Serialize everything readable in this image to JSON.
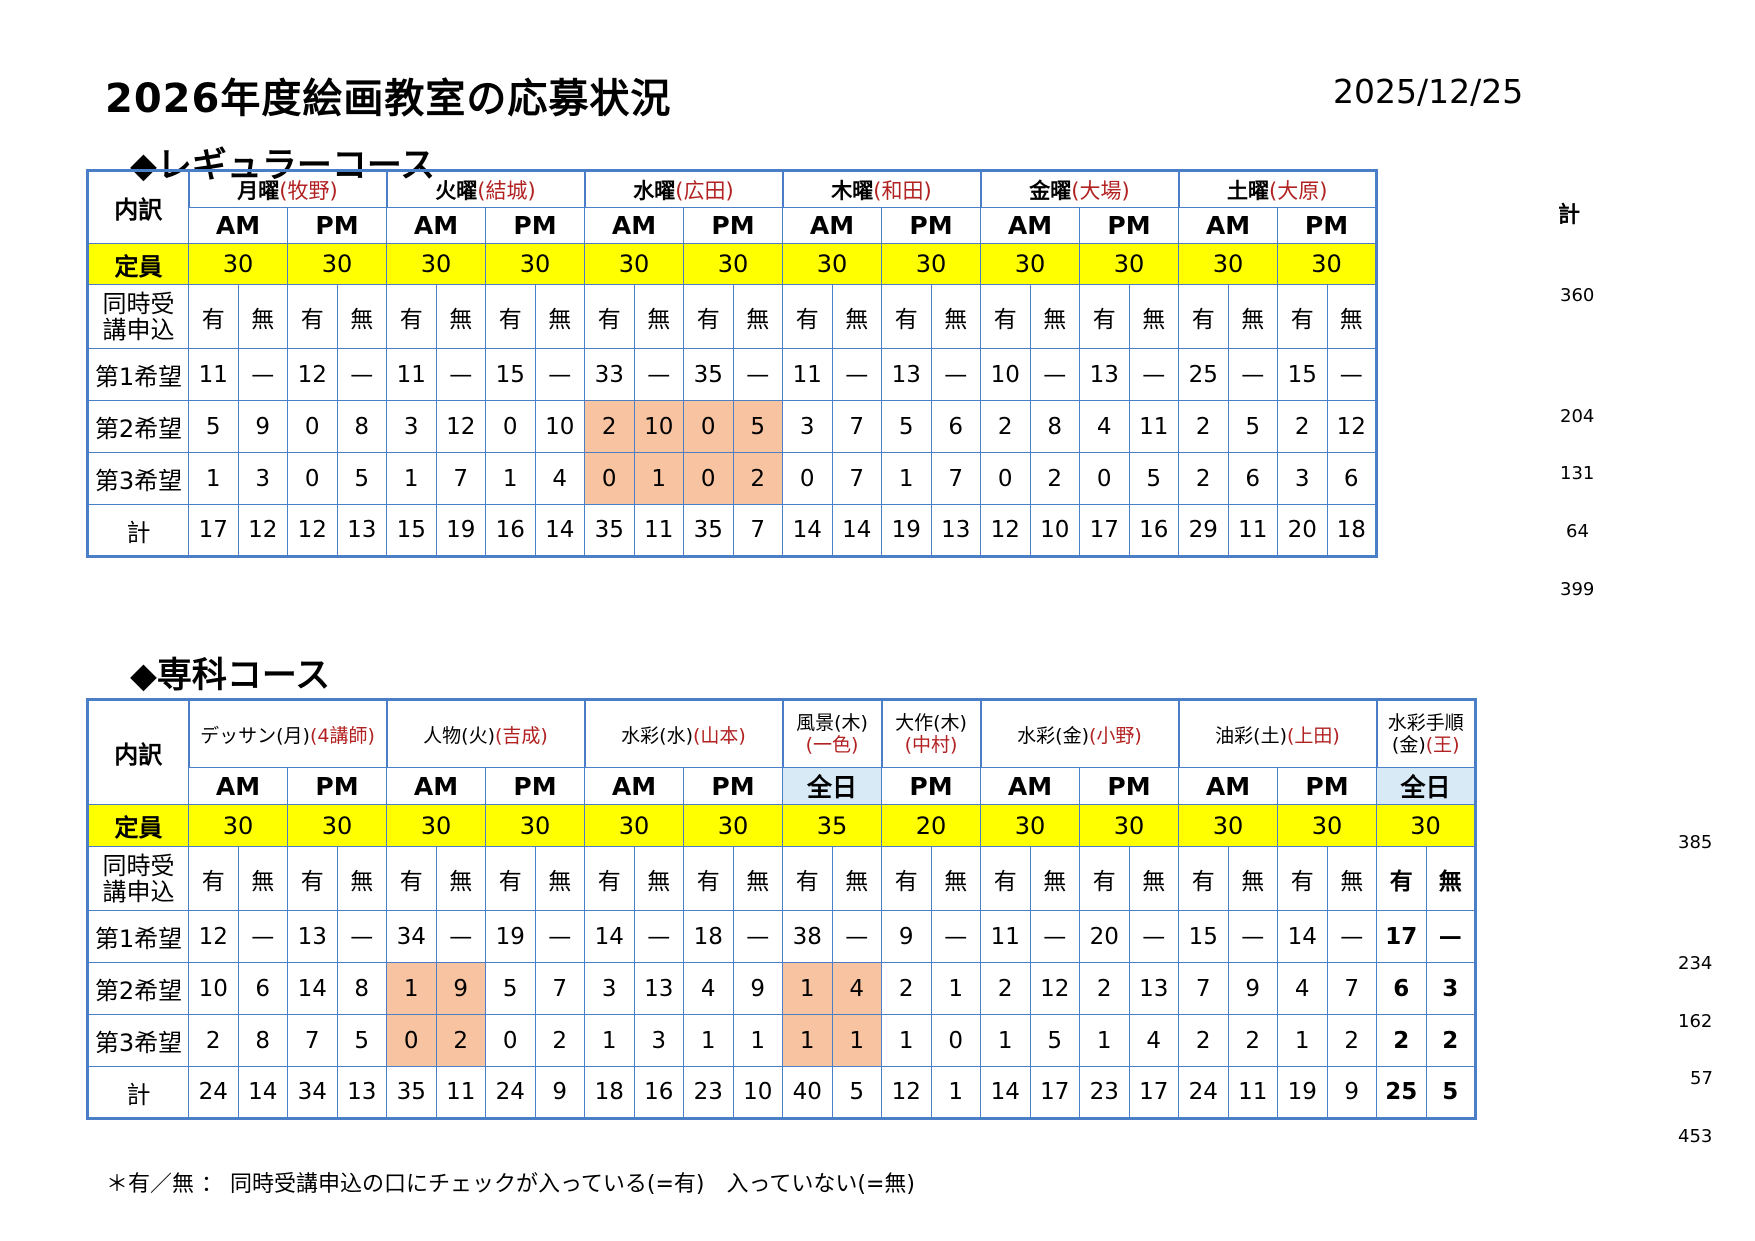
{
  "title": "2026年度絵画教室の応募状況",
  "date": "2025/12/25",
  "note": "＊有／無 ： 同時受講申込の口にチェックが入っている(=有)　入っていない(=無)",
  "labels": {
    "breakdown": "内訳",
    "capacity": "定員",
    "simul": "同時受講申込",
    "first": "第1希望",
    "second": "第2希望",
    "third": "第3希望",
    "total": "計",
    "sum_header": "計"
  },
  "regular": {
    "heading": "◆レギュラーコース",
    "days": [
      {
        "day": "月曜",
        "teacher": "(牧野)"
      },
      {
        "day": "火曜",
        "teacher": "(結城)"
      },
      {
        "day": "水曜",
        "teacher": "(広田)"
      },
      {
        "day": "木曜",
        "teacher": "(和田)"
      },
      {
        "day": "金曜",
        "teacher": "(大場)"
      },
      {
        "day": "土曜",
        "teacher": "(大原)"
      }
    ],
    "sessions": [
      "AM",
      "PM",
      "AM",
      "PM",
      "AM",
      "PM",
      "AM",
      "PM",
      "AM",
      "PM",
      "AM",
      "PM"
    ],
    "capacity": [
      "30",
      "30",
      "30",
      "30",
      "30",
      "30",
      "30",
      "30",
      "30",
      "30",
      "30",
      "30"
    ],
    "yesno": [
      "有",
      "無"
    ],
    "first": [
      "11",
      "—",
      "12",
      "—",
      "11",
      "—",
      "15",
      "—",
      "33",
      "—",
      "35",
      "—",
      "11",
      "—",
      "13",
      "—",
      "10",
      "—",
      "13",
      "—",
      "25",
      "—",
      "15",
      "—"
    ],
    "second": [
      "5",
      "9",
      "0",
      "8",
      "3",
      "12",
      "0",
      "10",
      "2",
      "10",
      "0",
      "5",
      "3",
      "7",
      "5",
      "6",
      "2",
      "8",
      "4",
      "11",
      "2",
      "5",
      "2",
      "12"
    ],
    "third": [
      "1",
      "3",
      "0",
      "5",
      "1",
      "7",
      "1",
      "4",
      "0",
      "1",
      "0",
      "2",
      "0",
      "7",
      "1",
      "7",
      "0",
      "2",
      "0",
      "5",
      "2",
      "6",
      "3",
      "6"
    ],
    "total": [
      "17",
      "12",
      "12",
      "13",
      "15",
      "19",
      "16",
      "14",
      "35",
      "11",
      "35",
      "7",
      "14",
      "14",
      "19",
      "13",
      "12",
      "10",
      "17",
      "16",
      "29",
      "11",
      "20",
      "18"
    ],
    "sums": {
      "capacity": "360",
      "first": "204",
      "second": "131",
      "third": "64",
      "total": "399"
    }
  },
  "special": {
    "heading": "◆専科コース",
    "courses": [
      {
        "name": "デッサン(月)",
        "teacher": "(4講師)"
      },
      {
        "name": "人物(火)",
        "teacher": "(吉成)"
      },
      {
        "name": "水彩(水)",
        "teacher": "(山本)"
      },
      {
        "name": "風景(木)",
        "teacher": "(一色)"
      },
      {
        "name": "大作(木)",
        "teacher": "(中村)"
      },
      {
        "name": "水彩(金)",
        "teacher": "(小野)"
      },
      {
        "name": "油彩(土)",
        "teacher": "(上田)"
      },
      {
        "name": "水彩手順",
        "name2": "(金)",
        "teacher": "(王)"
      }
    ],
    "sessions": [
      "AM",
      "PM",
      "AM",
      "PM",
      "AM",
      "PM",
      "全日",
      "PM",
      "AM",
      "PM",
      "AM",
      "PM",
      "全日"
    ],
    "capacity": [
      "30",
      "30",
      "30",
      "30",
      "30",
      "30",
      "35",
      "20",
      "30",
      "30",
      "30",
      "30",
      "30"
    ],
    "first": [
      "12",
      "—",
      "13",
      "—",
      "34",
      "—",
      "19",
      "—",
      "14",
      "—",
      "18",
      "—",
      "38",
      "—",
      "9",
      "—",
      "11",
      "—",
      "20",
      "—",
      "15",
      "—",
      "14",
      "—",
      "17",
      "—"
    ],
    "second": [
      "10",
      "6",
      "14",
      "8",
      "1",
      "9",
      "5",
      "7",
      "3",
      "13",
      "4",
      "9",
      "1",
      "4",
      "2",
      "1",
      "2",
      "12",
      "2",
      "13",
      "7",
      "9",
      "4",
      "7",
      "6",
      "3"
    ],
    "third": [
      "2",
      "8",
      "7",
      "5",
      "0",
      "2",
      "0",
      "2",
      "1",
      "3",
      "1",
      "1",
      "1",
      "1",
      "1",
      "0",
      "1",
      "5",
      "1",
      "4",
      "2",
      "2",
      "1",
      "2",
      "2",
      "2"
    ],
    "total": [
      "24",
      "14",
      "34",
      "13",
      "35",
      "11",
      "24",
      "9",
      "18",
      "16",
      "23",
      "10",
      "40",
      "5",
      "12",
      "1",
      "14",
      "17",
      "23",
      "17",
      "24",
      "11",
      "19",
      "9",
      "25",
      "5"
    ],
    "sums": {
      "capacity": "385",
      "first": "234",
      "second": "162",
      "third": "57",
      "total": "453"
    }
  },
  "colors": {
    "border": "#4a7ec6",
    "capacity_bg": "#ffff00",
    "highlight": "#f8c3a0",
    "allday_bg": "#d8eaf5",
    "teacher": "#b22222"
  }
}
